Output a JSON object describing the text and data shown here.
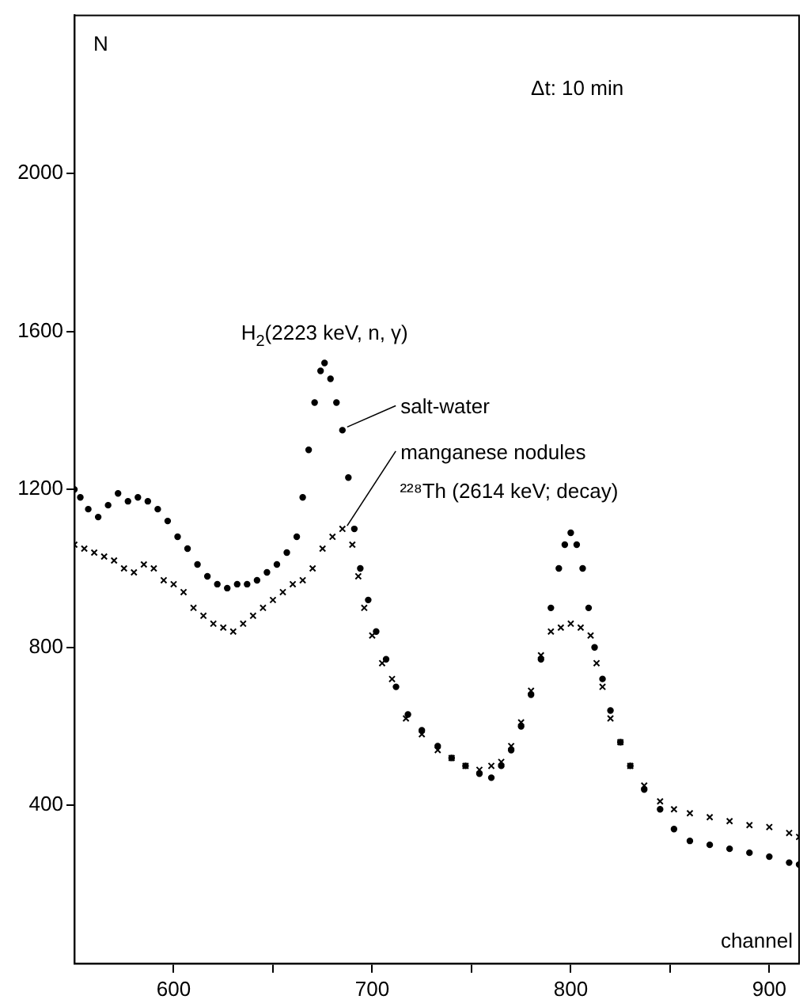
{
  "chart_data": {
    "type": "scatter",
    "xlabel": "channel",
    "ylabel": "N",
    "xlim": [
      550,
      915
    ],
    "xticks": [
      600,
      {
        "value": 650,
        "label": null
      },
      700,
      {
        "value": 750,
        "label": null
      },
      800,
      {
        "value": 850,
        "label": null
      },
      900
    ],
    "ylim": [
      0,
      2400
    ],
    "yticks": [
      400,
      800,
      1200,
      1600,
      2000
    ],
    "grid": false,
    "annotations": [
      "Δt: 10 min",
      {
        "text": "H$_{2}$(2223 keV, n, γ)",
        "x": 676,
        "y": 1520
      },
      {
        "text": "²²⁸Th (2614 keV; decay)",
        "x": 800,
        "y": 1090
      }
    ],
    "series": [
      {
        "name": "salt-water",
        "color": "#000000",
        "marker": "circle",
        "x": [
          550,
          553,
          557,
          562,
          567,
          572,
          577,
          582,
          587,
          592,
          597,
          602,
          607,
          612,
          617,
          622,
          627,
          632,
          637,
          642,
          647,
          652,
          657,
          662,
          665,
          668,
          671,
          674,
          676,
          679,
          682,
          685,
          688,
          691,
          694,
          698,
          702,
          707,
          712,
          718,
          725,
          733,
          740,
          747,
          754,
          760,
          765,
          770,
          775,
          780,
          785,
          790,
          794,
          797,
          800,
          803,
          806,
          809,
          812,
          816,
          820,
          825,
          830,
          837,
          845,
          852,
          860,
          870,
          880,
          890,
          900,
          910,
          915
        ],
        "values": [
          1200,
          1180,
          1150,
          1130,
          1160,
          1190,
          1170,
          1180,
          1170,
          1150,
          1120,
          1080,
          1050,
          1010,
          980,
          960,
          950,
          960,
          960,
          970,
          990,
          1010,
          1040,
          1080,
          1180,
          1300,
          1420,
          1500,
          1520,
          1480,
          1420,
          1350,
          1230,
          1100,
          1000,
          920,
          840,
          770,
          700,
          630,
          590,
          550,
          520,
          500,
          480,
          470,
          500,
          540,
          600,
          680,
          770,
          900,
          1000,
          1060,
          1090,
          1060,
          1000,
          900,
          800,
          720,
          640,
          560,
          500,
          440,
          390,
          340,
          310,
          300,
          290,
          280,
          270,
          255,
          250
        ]
      },
      {
        "name": "manganese nodules",
        "color": "#000000",
        "marker": "cross",
        "x": [
          550,
          555,
          560,
          565,
          570,
          575,
          580,
          585,
          590,
          595,
          600,
          605,
          610,
          615,
          620,
          625,
          630,
          635,
          640,
          645,
          650,
          655,
          660,
          665,
          670,
          675,
          680,
          685,
          690,
          693,
          696,
          700,
          705,
          710,
          717,
          725,
          733,
          740,
          747,
          754,
          760,
          765,
          770,
          775,
          780,
          785,
          790,
          795,
          800,
          805,
          810,
          813,
          816,
          820,
          825,
          830,
          837,
          845,
          852,
          860,
          870,
          880,
          890,
          900,
          910,
          915
        ],
        "values": [
          1060,
          1050,
          1040,
          1030,
          1020,
          1000,
          990,
          1010,
          1000,
          970,
          960,
          940,
          900,
          880,
          860,
          850,
          840,
          860,
          880,
          900,
          920,
          940,
          960,
          970,
          1000,
          1050,
          1080,
          1100,
          1060,
          980,
          900,
          830,
          760,
          720,
          620,
          580,
          540,
          520,
          500,
          490,
          500,
          510,
          550,
          610,
          690,
          780,
          840,
          850,
          860,
          850,
          830,
          760,
          700,
          620,
          560,
          500,
          450,
          410,
          390,
          380,
          370,
          360,
          350,
          345,
          330,
          320
        ]
      }
    ]
  }
}
